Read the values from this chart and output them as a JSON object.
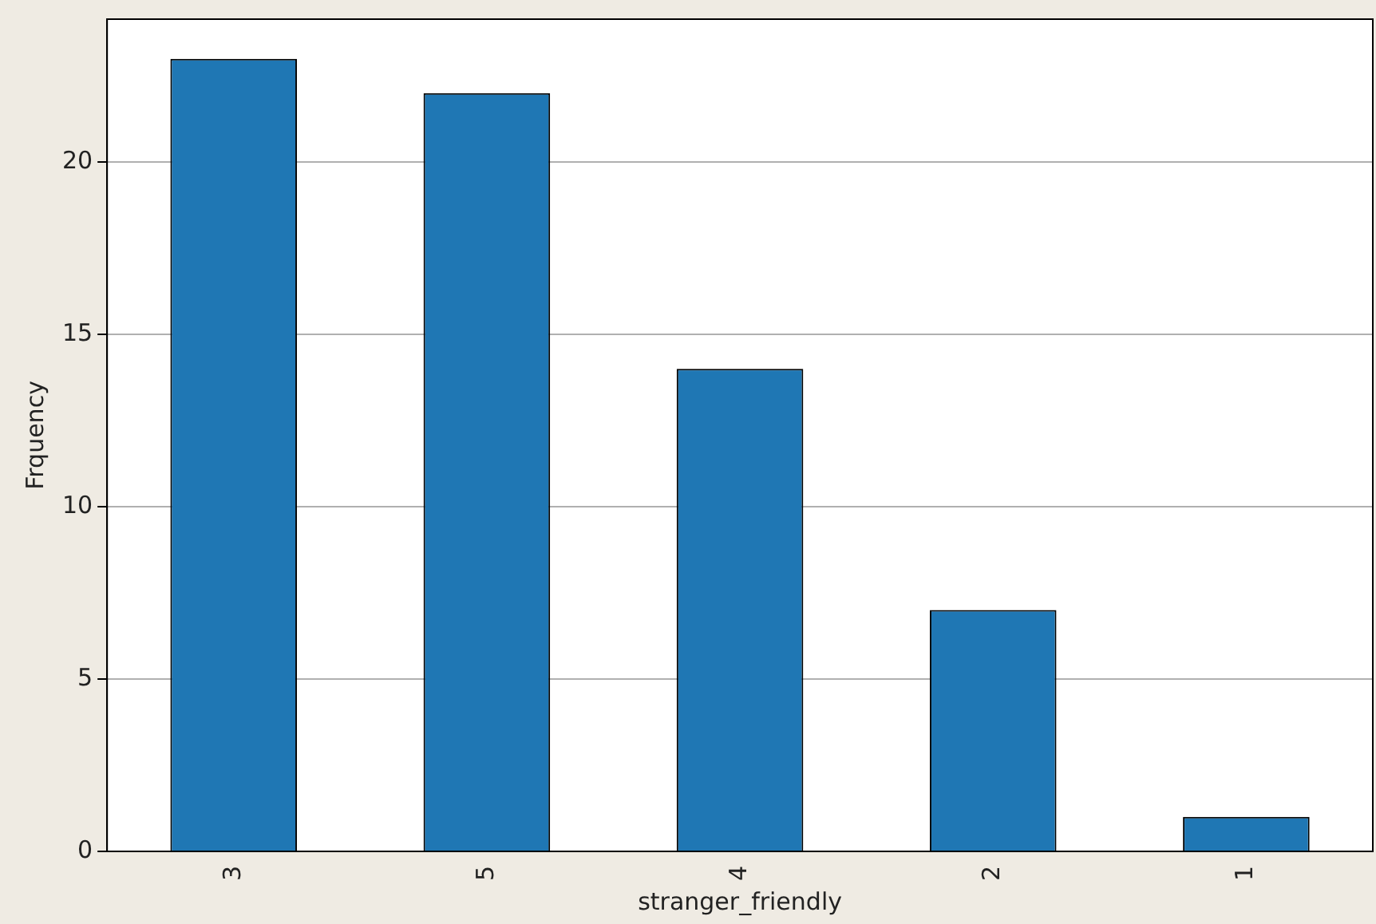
{
  "chart_data": {
    "type": "bar",
    "xlabel": "stranger_friendly",
    "ylabel": "Frquency",
    "categories": [
      "3",
      "5",
      "4",
      "2",
      "1"
    ],
    "values": [
      23,
      22,
      14,
      7,
      1
    ],
    "color": "#1f77b4",
    "ylim": [
      0,
      24.15
    ],
    "yticks": [
      0,
      5,
      10,
      15,
      20
    ],
    "grid": "y",
    "legend": false
  }
}
